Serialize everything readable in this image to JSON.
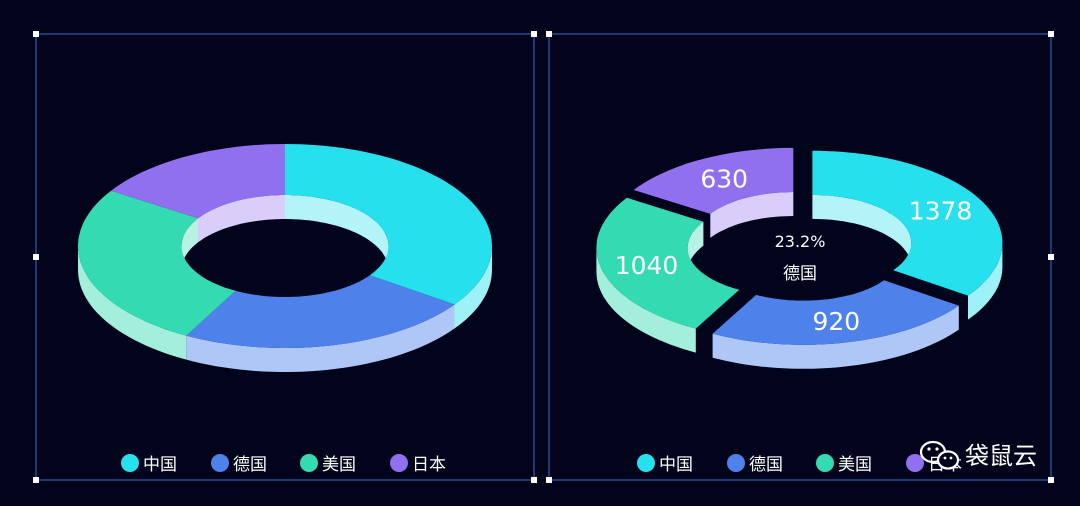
{
  "watermark": {
    "brand": "袋鼠云",
    "icon": "wechat-icon"
  },
  "colors": {
    "background": "#02041c",
    "frame": "#2f6fd6",
    "handle": "#ffffff",
    "legend_text": "#ffffff",
    "label_text": "#ffffff"
  },
  "chart_data": [
    {
      "type": "pie",
      "variant": "3d-donut",
      "categories": [
        "中国",
        "德国",
        "美国",
        "日本"
      ],
      "values": [
        1378,
        920,
        1040,
        630
      ],
      "colors": [
        "#26e0ee",
        "#4e82ea",
        "#34dbb2",
        "#9170f0"
      ],
      "legend": {
        "position": "bottom",
        "items": [
          "中国",
          "德国",
          "美国",
          "日本"
        ]
      },
      "data_labels": false
    },
    {
      "type": "pie",
      "variant": "3d-donut-exploded",
      "categories": [
        "中国",
        "德国",
        "美国",
        "日本"
      ],
      "values": [
        1378,
        920,
        1040,
        630
      ],
      "colors": [
        "#26e0ee",
        "#4e82ea",
        "#34dbb2",
        "#9170f0"
      ],
      "data_labels": true,
      "value_labels": [
        "1378",
        "920",
        "1040",
        "630"
      ],
      "highlight": {
        "category": "德国",
        "percent_text": "23.2%",
        "name_text": "德国"
      },
      "legend": {
        "position": "bottom",
        "items": [
          "中国",
          "德国",
          "美国",
          "日本"
        ]
      }
    }
  ]
}
